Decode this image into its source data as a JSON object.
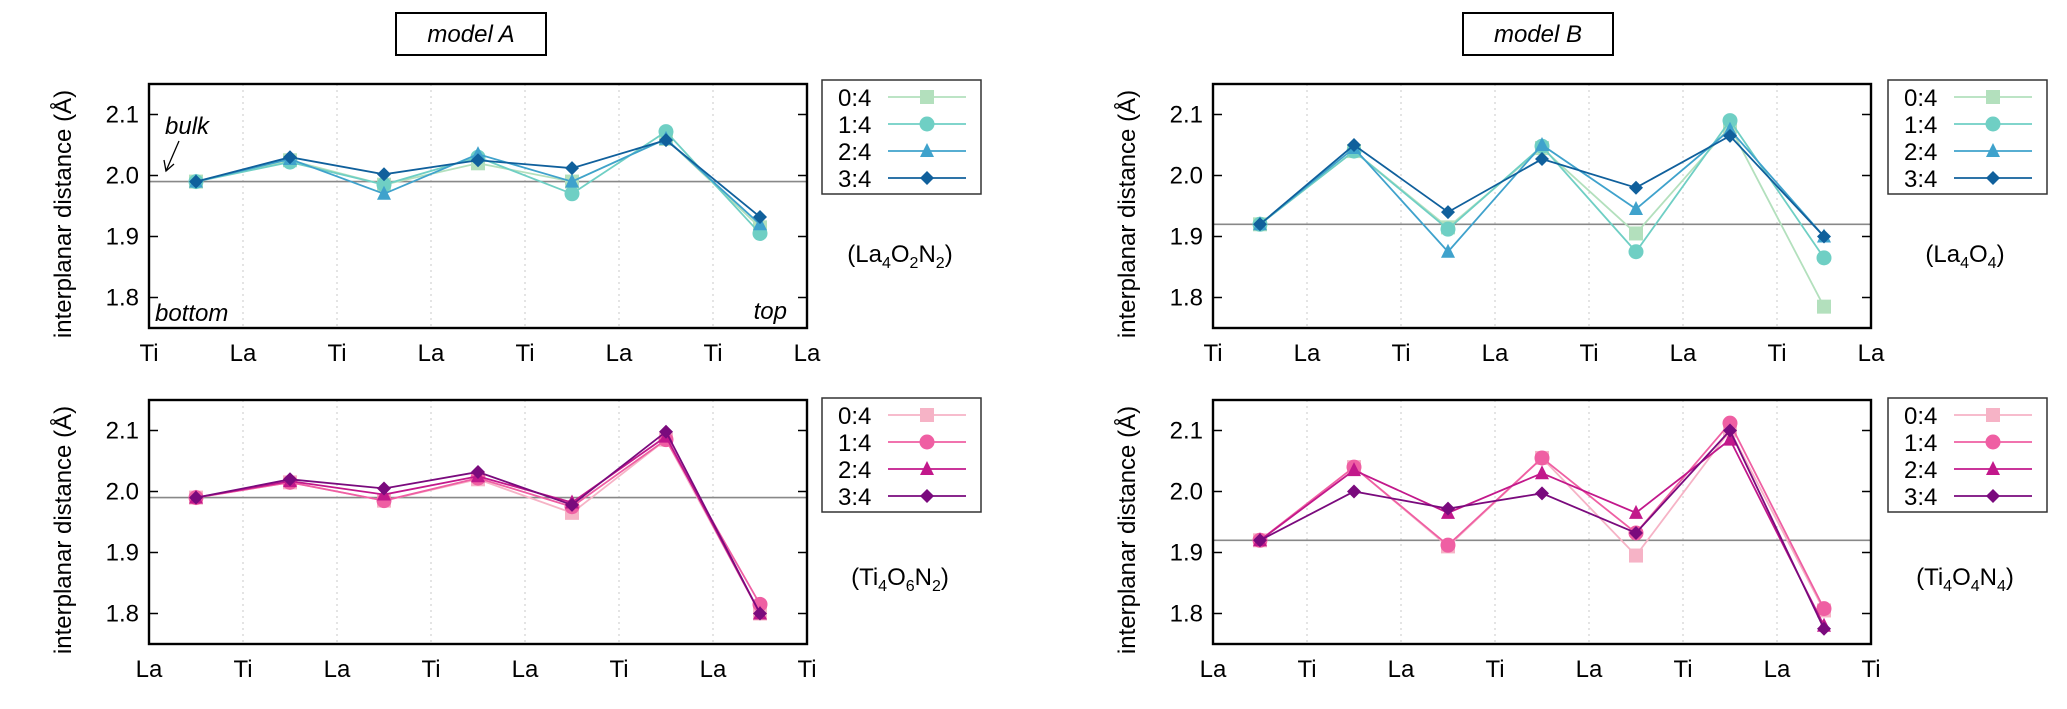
{
  "figure": {
    "titles": [
      "model A",
      "model B"
    ],
    "common_ylabel": "interplanar distance (Å)"
  },
  "chart_data": [
    {
      "type": "line",
      "panel": "model-a-top",
      "title": "model A",
      "ylabel": "interplanar distance (Å)",
      "compound": "(La4O2N2)",
      "compound_parts": [
        "(La",
        "4",
        "O",
        "2",
        "N",
        "2",
        ")"
      ],
      "xtick_labels": [
        "Ti",
        "La",
        "Ti",
        "La",
        "Ti",
        "La",
        "Ti",
        "La"
      ],
      "xlim": [
        0,
        7
      ],
      "x": [
        0.5,
        1.5,
        2.5,
        3.5,
        4.5,
        5.5,
        6.5
      ],
      "yticks": [
        1.8,
        1.9,
        2.0,
        2.1
      ],
      "ylim": [
        1.75,
        2.15
      ],
      "reference_line": 1.99,
      "annotations": {
        "bulk": "bulk",
        "bottom": "bottom",
        "top": "top"
      },
      "grid": "vertical-dotted",
      "legend": "right-outside",
      "palette": [
        "#b3e0bd",
        "#6fcfc4",
        "#3fa2cc",
        "#10609c"
      ],
      "series": [
        {
          "name": "0:4",
          "marker": "square",
          "values": [
            1.99,
            2.025,
            1.985,
            2.02,
            1.99,
            2.06,
            1.915
          ]
        },
        {
          "name": "1:4",
          "marker": "circle",
          "values": [
            1.99,
            2.022,
            1.985,
            2.03,
            1.97,
            2.072,
            1.905
          ]
        },
        {
          "name": "2:4",
          "marker": "triangle",
          "values": [
            1.99,
            2.027,
            1.97,
            2.035,
            1.99,
            2.06,
            1.92
          ]
        },
        {
          "name": "3:4",
          "marker": "diamond",
          "values": [
            1.99,
            2.03,
            2.002,
            2.025,
            2.012,
            2.058,
            1.932
          ]
        }
      ]
    },
    {
      "type": "line",
      "panel": "model-b-top",
      "title": "model B",
      "ylabel": "interplanar distance (Å)",
      "compound": "(La4O4)",
      "compound_parts": [
        "(La",
        "4",
        "O",
        "4",
        ")",
        "",
        ""
      ],
      "xtick_labels": [
        "Ti",
        "La",
        "Ti",
        "La",
        "Ti",
        "La",
        "Ti",
        "La"
      ],
      "xlim": [
        0,
        7
      ],
      "x": [
        0.5,
        1.5,
        2.5,
        3.5,
        4.5,
        5.5,
        6.5
      ],
      "yticks": [
        1.8,
        1.9,
        2.0,
        2.1
      ],
      "ylim": [
        1.75,
        2.15
      ],
      "reference_line": 1.92,
      "grid": "vertical-dotted",
      "legend": "right-outside",
      "palette": [
        "#b3e0bd",
        "#6fcfc4",
        "#3fa2cc",
        "#10609c"
      ],
      "series": [
        {
          "name": "0:4",
          "marker": "square",
          "values": [
            1.92,
            2.04,
            1.915,
            2.045,
            1.905,
            2.08,
            1.785
          ]
        },
        {
          "name": "1:4",
          "marker": "circle",
          "values": [
            1.92,
            2.04,
            1.912,
            2.048,
            1.875,
            2.09,
            1.865
          ]
        },
        {
          "name": "2:4",
          "marker": "triangle",
          "values": [
            1.92,
            2.045,
            1.875,
            2.05,
            1.945,
            2.075,
            1.9
          ]
        },
        {
          "name": "3:4",
          "marker": "diamond",
          "values": [
            1.92,
            2.05,
            1.94,
            2.027,
            1.98,
            2.065,
            1.9
          ]
        }
      ]
    },
    {
      "type": "line",
      "panel": "model-a-bottom",
      "ylabel": "interplanar distance (Å)",
      "compound": "(Ti4O6N2)",
      "compound_parts": [
        "(Ti",
        "4",
        "O",
        "6",
        "N",
        "2",
        ")"
      ],
      "xtick_labels": [
        "La",
        "Ti",
        "La",
        "Ti",
        "La",
        "Ti",
        "La",
        "Ti"
      ],
      "xlim": [
        0,
        7
      ],
      "x": [
        0.5,
        1.5,
        2.5,
        3.5,
        4.5,
        5.5,
        6.5
      ],
      "yticks": [
        1.8,
        1.9,
        2.0,
        2.1
      ],
      "ylim": [
        1.75,
        2.15
      ],
      "reference_line": 1.99,
      "grid": "vertical-dotted",
      "legend": "right-outside",
      "palette": [
        "#f6b3c6",
        "#ef5fa3",
        "#c2188b",
        "#7a0a7d"
      ],
      "series": [
        {
          "name": "0:4",
          "marker": "square",
          "values": [
            1.99,
            2.015,
            1.985,
            2.02,
            1.965,
            2.085,
            1.8
          ]
        },
        {
          "name": "1:4",
          "marker": "circle",
          "values": [
            1.99,
            2.015,
            1.985,
            2.022,
            1.975,
            2.085,
            1.815
          ]
        },
        {
          "name": "2:4",
          "marker": "triangle",
          "values": [
            1.99,
            2.017,
            1.995,
            2.025,
            1.982,
            2.09,
            1.8
          ]
        },
        {
          "name": "3:4",
          "marker": "diamond",
          "values": [
            1.99,
            2.02,
            2.005,
            2.032,
            1.978,
            2.098,
            1.8
          ]
        }
      ]
    },
    {
      "type": "line",
      "panel": "model-b-bottom",
      "ylabel": "interplanar distance (Å)",
      "compound": "(Ti4O4N4)",
      "compound_parts": [
        "(Ti",
        "4",
        "O",
        "4",
        "N",
        "4",
        ")"
      ],
      "xtick_labels": [
        "La",
        "Ti",
        "La",
        "Ti",
        "La",
        "Ti",
        "La",
        "Ti"
      ],
      "xlim": [
        0,
        7
      ],
      "x": [
        0.5,
        1.5,
        2.5,
        3.5,
        4.5,
        5.5,
        6.5
      ],
      "yticks": [
        1.8,
        1.9,
        2.0,
        2.1
      ],
      "ylim": [
        1.75,
        2.15
      ],
      "reference_line": 1.92,
      "grid": "vertical-dotted",
      "legend": "right-outside",
      "palette": [
        "#f6b3c6",
        "#ef5fa3",
        "#c2188b",
        "#7a0a7d"
      ],
      "series": [
        {
          "name": "0:4",
          "marker": "square",
          "values": [
            1.92,
            2.04,
            1.91,
            2.055,
            1.895,
            2.1,
            1.805
          ]
        },
        {
          "name": "1:4",
          "marker": "circle",
          "values": [
            1.92,
            2.04,
            1.912,
            2.055,
            1.932,
            2.112,
            1.808
          ]
        },
        {
          "name": "2:4",
          "marker": "triangle",
          "values": [
            1.92,
            2.035,
            1.965,
            2.03,
            1.965,
            2.085,
            1.78
          ]
        },
        {
          "name": "3:4",
          "marker": "diamond",
          "values": [
            1.92,
            2.0,
            1.972,
            1.997,
            1.932,
            2.1,
            1.775
          ]
        }
      ]
    }
  ]
}
